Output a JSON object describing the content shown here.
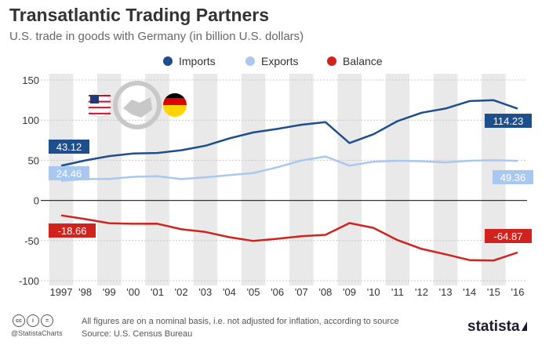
{
  "title": "Transatlantic Trading Partners",
  "subtitle": "U.S. trade in goods with Germany (in billion U.S. dollars)",
  "legend": [
    {
      "label": "Imports",
      "color": "#1f4e8c"
    },
    {
      "label": "Exports",
      "color": "#a9c8f0"
    },
    {
      "label": "Balance",
      "color": "#d0231d"
    }
  ],
  "icons": {
    "us_flag": "us-flag-icon",
    "handshake": "handshake-icon",
    "germany_flag": "germany-flag-icon"
  },
  "chart_data": {
    "type": "line",
    "x": [
      "1997",
      "'98",
      "'99",
      "'00",
      "'01",
      "'02",
      "'03",
      "'04",
      "'05",
      "'06",
      "'07",
      "'08",
      "'09",
      "'10",
      "'11",
      "'12",
      "'13",
      "'14",
      "'15",
      "'16"
    ],
    "ylim": [
      -100,
      150
    ],
    "yticks": [
      150,
      100,
      50,
      0,
      -50,
      -100
    ],
    "grid": true,
    "series": [
      {
        "name": "Imports",
        "color": "#1f4e8c",
        "values": [
          43.12,
          49.8,
          55.2,
          58.5,
          59.1,
          62.5,
          68.1,
          77.2,
          84.7,
          89.1,
          94.2,
          97.6,
          71.5,
          82.4,
          98.7,
          109.2,
          114.5,
          123.7,
          124.8,
          114.23
        ],
        "end_label": "114.23",
        "start_label": "43.12"
      },
      {
        "name": "Exports",
        "color": "#a9c8f0",
        "values": [
          24.46,
          26.6,
          26.8,
          29.4,
          30.1,
          26.6,
          28.8,
          31.4,
          34.2,
          41.3,
          49.7,
          54.7,
          43.3,
          48.2,
          49.3,
          48.8,
          47.4,
          49.4,
          50.0,
          49.36
        ],
        "end_label": "49.36",
        "start_label": "24.46"
      },
      {
        "name": "Balance",
        "color": "#d0231d",
        "values": [
          -18.66,
          -23.2,
          -28.4,
          -29.1,
          -29.0,
          -35.9,
          -39.3,
          -45.8,
          -50.5,
          -47.8,
          -44.5,
          -42.9,
          -28.2,
          -34.2,
          -49.4,
          -60.4,
          -67.1,
          -74.3,
          -74.8,
          -64.87
        ],
        "end_label": "-64.87",
        "start_label": "-18.66"
      }
    ]
  },
  "footer": {
    "note": "All figures are on a nominal basis, i.e. not adjusted for inflation, according to source",
    "source": "Source: U.S. Census Bureau",
    "handle": "@StatistaCharts",
    "brand": "statista",
    "cc_icons": [
      "cc",
      "i",
      "="
    ]
  }
}
